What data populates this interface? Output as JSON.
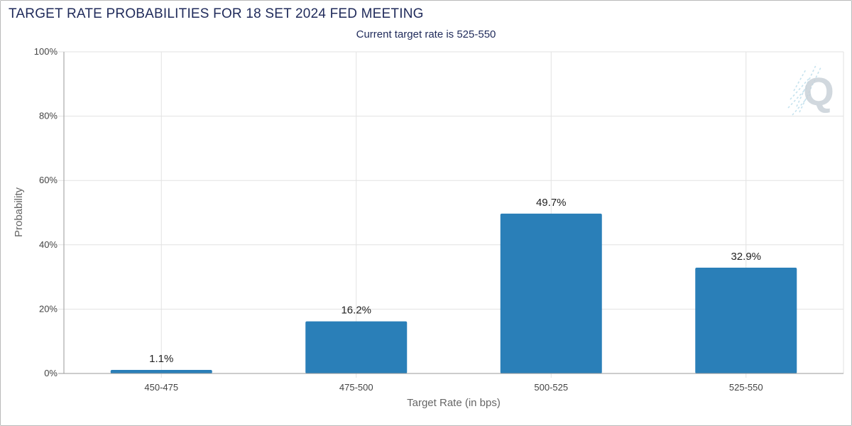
{
  "title": "TARGET RATE PROBABILITIES FOR 18 SET 2024 FED MEETING",
  "subtitle": "Current target rate is 525-550",
  "watermark": "Q",
  "colors": {
    "bar": "#2a7fb8",
    "title": "#1f2a5a",
    "grid": "#e2e2e2"
  },
  "chart_data": {
    "type": "bar",
    "categories": [
      "450-475",
      "475-500",
      "500-525",
      "525-550"
    ],
    "values": [
      1.1,
      16.2,
      49.7,
      32.9
    ],
    "value_labels": [
      "1.1%",
      "16.2%",
      "49.7%",
      "32.9%"
    ],
    "xlabel": "Target Rate (in bps)",
    "ylabel": "Probability",
    "ylim": [
      0,
      100
    ],
    "yticks": [
      0,
      20,
      40,
      60,
      80,
      100
    ],
    "ytick_labels": [
      "0%",
      "20%",
      "40%",
      "60%",
      "80%",
      "100%"
    ],
    "grid": true,
    "legend": "none"
  }
}
